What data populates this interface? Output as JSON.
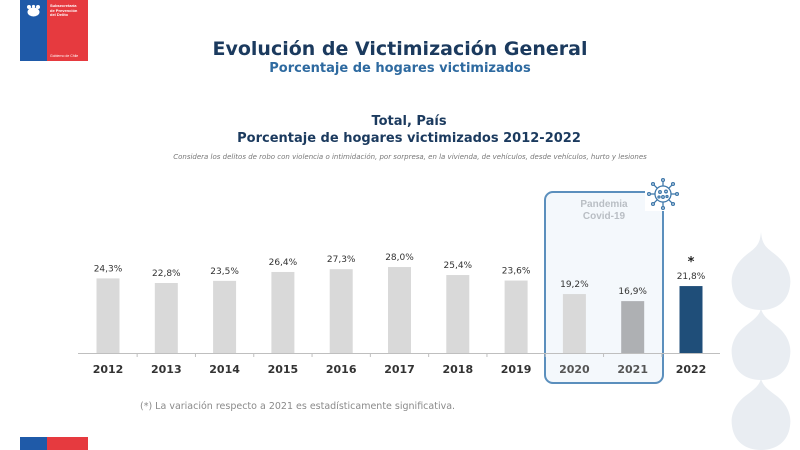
{
  "logo": {
    "lines": [
      "Subsecretaría",
      "de Prevención",
      "del Delito"
    ],
    "gov": "Gobierno de Chile"
  },
  "header": {
    "title": "Evolución de Victimización General",
    "subtitle": "Porcentaje de hogares victimizados"
  },
  "colors": {
    "title": "#1b3a5e",
    "subtitle": "#2e6aa0",
    "bar_default": "#d9d9d9",
    "bar_2021": "#aeb0b3",
    "bar_2022": "#1f4e79",
    "pandemic_border": "#5b8fbd",
    "flag_blue": "#1f5aa8",
    "flag_red": "#e63a3f"
  },
  "pandemic": {
    "label_line1": "Pandemia",
    "label_line2": "Covid-19",
    "icon": "virus-icon"
  },
  "chart_data": {
    "type": "bar",
    "title": "Total, País",
    "subtitle": "Porcentaje de hogares victimizados 2012-2022",
    "note": "Considera los delitos de robo con violencia o intimidación, por sorpresa, en la vivienda, de vehículos, desde vehículos, hurto y lesiones",
    "xlabel": "",
    "ylabel": "",
    "ylim": [
      0,
      30
    ],
    "grid": false,
    "categories": [
      "2012",
      "2013",
      "2014",
      "2015",
      "2016",
      "2017",
      "2018",
      "2019",
      "2020",
      "2021",
      "2022"
    ],
    "values": [
      24.3,
      22.8,
      23.5,
      26.4,
      27.3,
      28.0,
      25.4,
      23.6,
      19.2,
      16.9,
      21.8
    ],
    "labels": [
      "24,3%",
      "22,8%",
      "23,5%",
      "26,4%",
      "27,3%",
      "28,0%",
      "25,4%",
      "23,6%",
      "19,2%",
      "16,9%",
      "21,8%"
    ],
    "highlight": {
      "category": "2022",
      "marker": "*"
    }
  },
  "footnote": "(*) La variación respecto a 2021 es estadísticamente significativa."
}
